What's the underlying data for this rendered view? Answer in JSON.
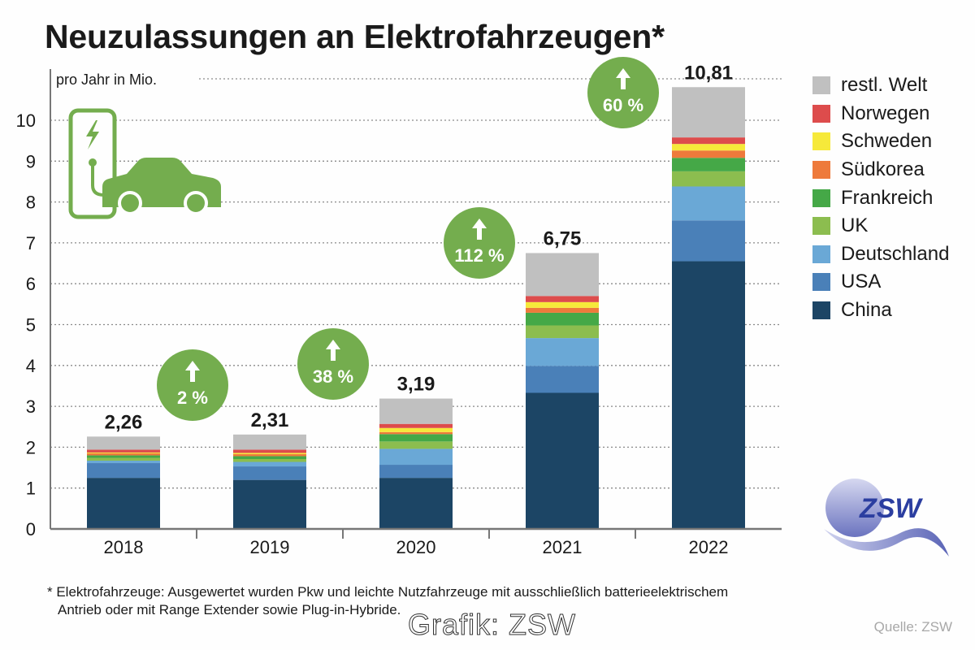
{
  "title": "Neuzulassungen an Elektrofahrzeugen*",
  "chart_data": {
    "type": "bar",
    "stacked": true,
    "title": "Neuzulassungen an Elektrofahrzeugen*",
    "ylabel": "pro Jahr in Mio.",
    "xlabel": "",
    "ylim": [
      0,
      10.8
    ],
    "yticks": [
      0,
      1,
      2,
      3,
      4,
      5,
      6,
      7,
      8,
      9,
      10
    ],
    "grid": true,
    "legend_position": "right",
    "categories": [
      "2018",
      "2019",
      "2020",
      "2021",
      "2022"
    ],
    "totals": [
      2.26,
      2.31,
      3.19,
      6.75,
      10.81
    ],
    "total_labels": [
      "2,26",
      "2,31",
      "3,19",
      "6,75",
      "10,81"
    ],
    "series": [
      {
        "name": "China",
        "color": "#1c4565",
        "values": [
          1.25,
          1.2,
          1.25,
          3.33,
          6.55
        ]
      },
      {
        "name": "USA",
        "color": "#4a80b8",
        "values": [
          0.36,
          0.33,
          0.32,
          0.66,
          1.0
        ]
      },
      {
        "name": "Deutschland",
        "color": "#6aa8d6",
        "values": [
          0.06,
          0.11,
          0.39,
          0.68,
          0.83
        ]
      },
      {
        "name": "UK",
        "color": "#8cbd4f",
        "values": [
          0.07,
          0.07,
          0.18,
          0.31,
          0.37
        ]
      },
      {
        "name": "Frankreich",
        "color": "#45a847",
        "values": [
          0.06,
          0.07,
          0.18,
          0.31,
          0.33
        ]
      },
      {
        "name": "Südkorea",
        "color": "#ee7a3b",
        "values": [
          0.05,
          0.05,
          0.05,
          0.12,
          0.18
        ]
      },
      {
        "name": "Schweden",
        "color": "#f6e93a",
        "values": [
          0.02,
          0.03,
          0.1,
          0.14,
          0.16
        ]
      },
      {
        "name": "Norwegen",
        "color": "#dd4c4c",
        "values": [
          0.07,
          0.08,
          0.1,
          0.15,
          0.16
        ]
      },
      {
        "name": "restl. Welt",
        "color": "#c0c0c0",
        "values": [
          0.32,
          0.37,
          0.62,
          1.05,
          1.23
        ]
      }
    ],
    "growth_badges": [
      {
        "between": [
          "2018",
          "2019"
        ],
        "label": "2 %"
      },
      {
        "between": [
          "2019",
          "2020"
        ],
        "label": "38 %"
      },
      {
        "between": [
          "2020",
          "2021"
        ],
        "label": "112 %"
      },
      {
        "between": [
          "2021",
          "2022"
        ],
        "label": "60 %"
      }
    ]
  },
  "colors": {
    "badge": "#74ad4e",
    "icon": "#74ad4e",
    "axis": "#777777",
    "grid": "#8a8a8a"
  },
  "icons": {
    "illustration": "ev-charging-car-icon",
    "badge_arrow": "arrow-up-icon",
    "logo": "zsw-logo"
  },
  "logo_text": "ZSW",
  "footnote": {
    "line1": "* Elektrofahrzeuge: Ausgewertet wurden Pkw und leichte Nutzfahrzeuge mit ausschließlich batterieelektrischem",
    "line2": "Antrieb oder mit Range Extender sowie Plug-in-Hybride."
  },
  "credit": "Grafik: ZSW",
  "source": "Quelle: ZSW"
}
